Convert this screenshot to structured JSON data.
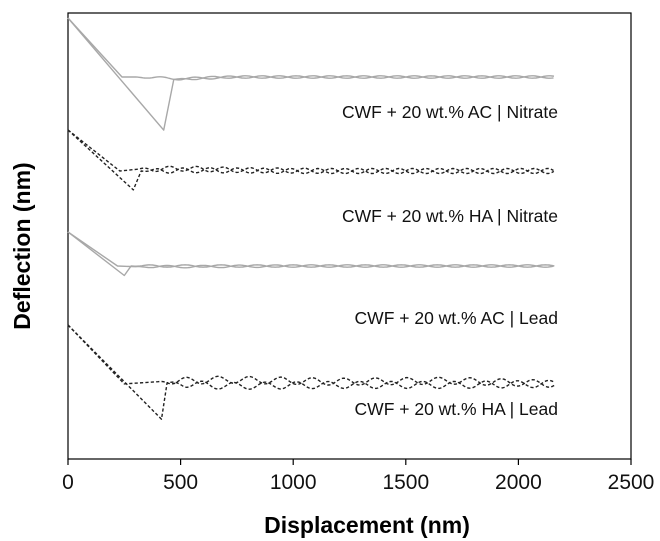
{
  "chart_data": {
    "type": "line",
    "title": "",
    "xlabel": "Displacement (nm)",
    "ylabel": "Deflection (nm)",
    "xlim": [
      0,
      2500
    ],
    "x_ticks": [
      "0",
      "500",
      "1000",
      "1500",
      "2000",
      "2500"
    ],
    "y_ticks": [],
    "grid": false,
    "legend": "labels placed beneath each curve",
    "series": [
      {
        "name": "CWF + 20 wt.% AC | Nitrate",
        "color": "#a8a8a8",
        "dash": "solid",
        "approach": [
          [
            0,
            100
          ],
          [
            240,
            50
          ],
          [
            300,
            50
          ],
          [
            500,
            48.5
          ],
          [
            750,
            50
          ],
          [
            1000,
            50
          ],
          [
            1500,
            50
          ],
          [
            2000,
            50
          ],
          [
            2160,
            50
          ]
        ],
        "retract": [
          [
            0,
            100
          ],
          [
            425,
            5
          ],
          [
            470,
            48
          ],
          [
            700,
            50
          ],
          [
            1000,
            50
          ],
          [
            1500,
            50
          ],
          [
            2000,
            50
          ],
          [
            2160,
            50
          ]
        ],
        "wave_amplitude": 1.2,
        "wave_period": 150
      },
      {
        "name": "CWF + 20 wt.% HA | Nitrate",
        "color": "#222222",
        "dash": "dashed",
        "approach": [
          [
            0,
            100
          ],
          [
            230,
            50
          ],
          [
            300,
            52
          ],
          [
            500,
            53
          ],
          [
            800,
            51
          ],
          [
            1200,
            50
          ],
          [
            1600,
            50
          ],
          [
            2160,
            50
          ]
        ],
        "retract": [
          [
            0,
            100
          ],
          [
            290,
            27
          ],
          [
            325,
            50
          ],
          [
            600,
            51
          ],
          [
            1000,
            50
          ],
          [
            1600,
            50
          ],
          [
            2160,
            50
          ]
        ],
        "wave_amplitude": 2.5,
        "wave_period": 120
      },
      {
        "name": "CWF + 20 wt.% AC | Lead",
        "color": "#a8a8a8",
        "dash": "solid",
        "approach": [
          [
            0,
            100
          ],
          [
            220,
            50
          ],
          [
            300,
            49
          ],
          [
            500,
            49
          ],
          [
            1000,
            50
          ],
          [
            1600,
            50
          ],
          [
            2160,
            50
          ]
        ],
        "retract": [
          [
            0,
            100
          ],
          [
            250,
            36
          ],
          [
            280,
            50
          ],
          [
            600,
            50
          ],
          [
            1000,
            50
          ],
          [
            1600,
            50
          ],
          [
            2160,
            50
          ]
        ],
        "wave_amplitude": 1.2,
        "wave_period": 160
      },
      {
        "name": "CWF + 20 wt.% HA | Lead",
        "color": "#222222",
        "dash": "dashed",
        "approach": [
          [
            0,
            100
          ],
          [
            250,
            45
          ],
          [
            400,
            47
          ],
          [
            700,
            49
          ],
          [
            1200,
            47
          ],
          [
            1700,
            48
          ],
          [
            2160,
            45
          ]
        ],
        "retract": [
          [
            0,
            100
          ],
          [
            415,
            12
          ],
          [
            440,
            46
          ],
          [
            700,
            43
          ],
          [
            1200,
            44
          ],
          [
            1700,
            44
          ],
          [
            2160,
            45
          ]
        ],
        "wave_amplitude": 3.5,
        "wave_period": 140
      }
    ]
  }
}
